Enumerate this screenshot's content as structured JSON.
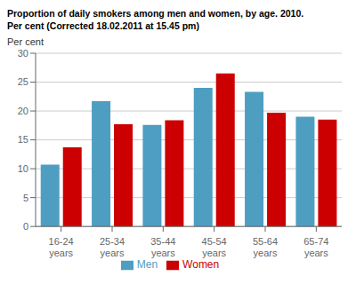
{
  "chart_data": {
    "type": "bar",
    "title": "Proportion of daily smokers among men and women, by age. 2010.",
    "subtitle": "Per cent  (Corrected 18.02.2011 at 15.45 pm)",
    "ylabel": "Per cent",
    "categories": [
      "16-24\nyears",
      "25-34\nyears",
      "35-44\nyears",
      "45-54\nyears",
      "55-64\nyears",
      "65-74\nyears"
    ],
    "series": [
      {
        "name": "Men",
        "color": "#4e9ec2",
        "values": [
          10.7,
          21.7,
          17.6,
          24.0,
          23.3,
          19.0
        ]
      },
      {
        "name": "Women",
        "color": "#cc0000",
        "values": [
          13.7,
          17.7,
          18.4,
          26.5,
          19.7,
          18.5
        ]
      }
    ],
    "ylim": [
      0,
      30
    ],
    "yticks": [
      0,
      5,
      10,
      15,
      20,
      25,
      30
    ],
    "grid": true,
    "legend": "bottom"
  }
}
